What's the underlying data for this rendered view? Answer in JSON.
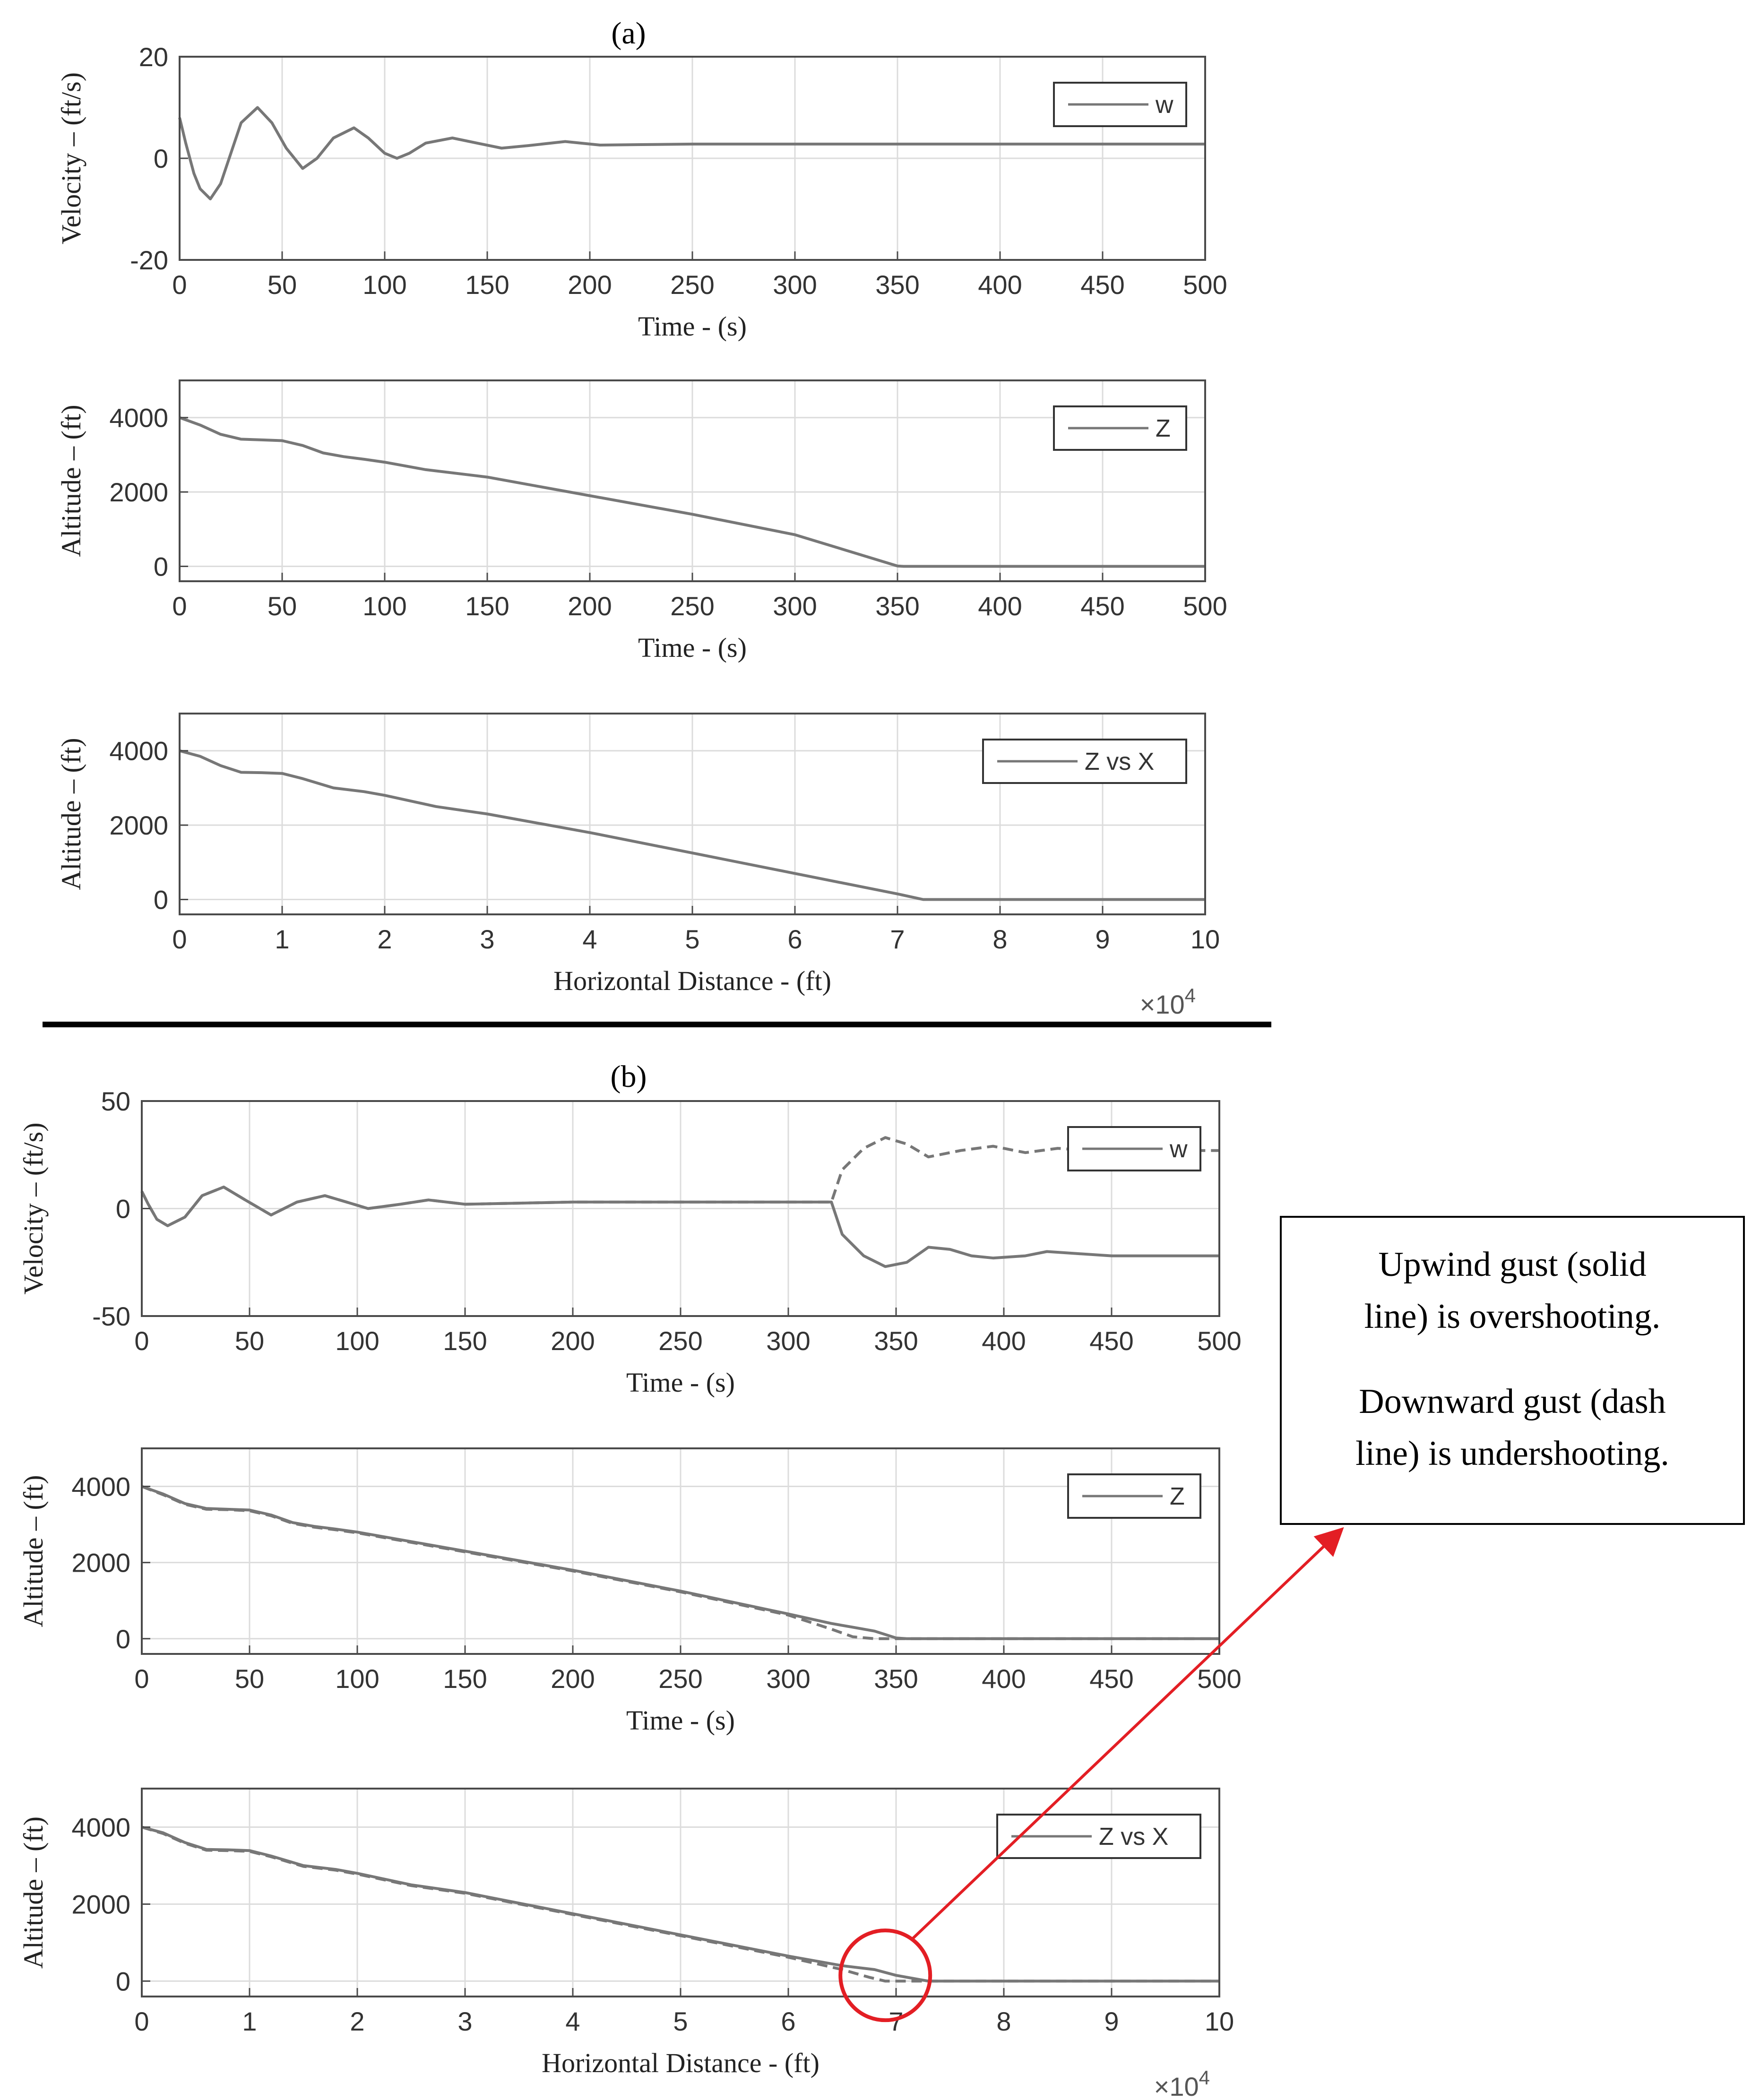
{
  "panel_labels": {
    "a": "(a)",
    "b": "(b)"
  },
  "annotation": {
    "lines": [
      "Upwind gust (solid",
      "line) is overshooting.",
      "Downward gust (dash",
      "line) is undershooting."
    ]
  },
  "colors": {
    "line": "#777777",
    "grid": "#dcdcdc",
    "arrow": "#e31e24",
    "circle": "#e31e24"
  },
  "chart_data": [
    {
      "id": "a1",
      "type": "line",
      "xlabel": "Time - (s)",
      "ylabel": "Velocity – (ft/s)",
      "xlim": [
        0,
        500
      ],
      "ylim": [
        -20,
        20
      ],
      "xticks": [
        0,
        50,
        100,
        150,
        200,
        250,
        300,
        350,
        400,
        450,
        500
      ],
      "yticks": [
        -20,
        0,
        20
      ],
      "legend": {
        "entries": [
          "w"
        ],
        "position": "top-right"
      },
      "grid": true,
      "series": [
        {
          "name": "w",
          "style": "solid",
          "x": [
            0,
            3,
            7,
            10,
            15,
            20,
            25,
            30,
            38,
            45,
            52,
            60,
            67,
            75,
            85,
            92,
            100,
            106,
            112,
            120,
            133,
            145,
            157,
            170,
            188,
            205,
            225,
            250,
            300,
            500
          ],
          "y": [
            8,
            3,
            -3,
            -6,
            -8,
            -5,
            1,
            7,
            10,
            7,
            2,
            -2,
            0,
            4,
            6,
            4,
            1,
            0,
            1,
            3,
            4,
            3,
            2,
            2.5,
            3.3,
            2.6,
            2.7,
            2.8,
            2.8,
            2.8
          ]
        }
      ]
    },
    {
      "id": "a2",
      "type": "line",
      "xlabel": "Time - (s)",
      "ylabel": "Altitude – (ft)",
      "xlim": [
        0,
        500
      ],
      "ylim": [
        -400,
        5000
      ],
      "xticks": [
        0,
        50,
        100,
        150,
        200,
        250,
        300,
        350,
        400,
        450,
        500
      ],
      "yticks": [
        0,
        2000,
        4000
      ],
      "legend": {
        "entries": [
          "Z"
        ],
        "position": "top-right"
      },
      "grid": true,
      "series": [
        {
          "name": "Z",
          "style": "solid",
          "x": [
            0,
            10,
            20,
            30,
            40,
            50,
            60,
            70,
            80,
            90,
            100,
            120,
            150,
            200,
            250,
            300,
            350,
            353,
            400,
            450,
            500
          ],
          "y": [
            4000,
            3800,
            3550,
            3420,
            3400,
            3380,
            3250,
            3050,
            2950,
            2880,
            2800,
            2600,
            2400,
            1900,
            1400,
            850,
            10,
            0,
            0,
            0,
            0
          ]
        }
      ]
    },
    {
      "id": "a3",
      "type": "line",
      "xlabel": "Horizontal Distance - (ft)",
      "ylabel": "Altitude – (ft)",
      "xlim": [
        0,
        10
      ],
      "ylim": [
        -400,
        5000
      ],
      "x_multiplier": "×10",
      "x_multiplier_exp": "4",
      "xticks": [
        0,
        1,
        2,
        3,
        4,
        5,
        6,
        7,
        8,
        9,
        10
      ],
      "yticks": [
        0,
        2000,
        4000
      ],
      "legend": {
        "entries": [
          "Z vs X"
        ],
        "position": "top-right"
      },
      "grid": true,
      "series": [
        {
          "name": "Z vs X",
          "style": "solid",
          "x": [
            0,
            0.2,
            0.4,
            0.6,
            0.8,
            1.0,
            1.2,
            1.5,
            1.8,
            2.0,
            2.5,
            3.0,
            4.0,
            5.0,
            6.0,
            7.0,
            7.25,
            8,
            9,
            10
          ],
          "y": [
            4000,
            3850,
            3600,
            3420,
            3410,
            3390,
            3250,
            3000,
            2900,
            2800,
            2500,
            2300,
            1800,
            1250,
            700,
            150,
            0,
            0,
            0,
            0
          ]
        }
      ]
    },
    {
      "id": "b1",
      "type": "line",
      "xlabel": "Time - (s)",
      "ylabel": "Velocity – (ft/s)",
      "xlim": [
        0,
        500
      ],
      "ylim": [
        -50,
        50
      ],
      "xticks": [
        0,
        50,
        100,
        150,
        200,
        250,
        300,
        350,
        400,
        450,
        500
      ],
      "yticks": [
        -50,
        0,
        50
      ],
      "legend": {
        "entries": [
          "w"
        ],
        "position": "top-right"
      },
      "grid": true,
      "series": [
        {
          "name": "upwind gust",
          "style": "solid",
          "x": [
            0,
            3,
            7,
            12,
            20,
            28,
            38,
            48,
            60,
            72,
            85,
            95,
            105,
            120,
            133,
            150,
            175,
            200,
            250,
            300,
            320,
            325,
            335,
            345,
            355,
            365,
            375,
            385,
            395,
            410,
            420,
            435,
            450,
            470,
            500
          ],
          "y": [
            8,
            2,
            -5,
            -8,
            -4,
            6,
            10,
            4,
            -3,
            3,
            6,
            3,
            0,
            2,
            4,
            2,
            2.5,
            3,
            3,
            3,
            3,
            -12,
            -22,
            -27,
            -25,
            -18,
            -19,
            -22,
            -23,
            -22,
            -20,
            -21,
            -22,
            -22,
            -22
          ]
        },
        {
          "name": "downward gust",
          "style": "dashed",
          "x": [
            0,
            3,
            7,
            12,
            20,
            28,
            38,
            48,
            60,
            72,
            85,
            95,
            105,
            120,
            133,
            150,
            175,
            200,
            250,
            300,
            320,
            325,
            335,
            345,
            355,
            365,
            380,
            395,
            410,
            425,
            440,
            460,
            480,
            500
          ],
          "y": [
            8,
            2,
            -5,
            -8,
            -4,
            6,
            10,
            4,
            -3,
            3,
            6,
            3,
            0,
            2,
            4,
            2,
            2.5,
            3,
            3,
            3,
            3,
            18,
            28,
            33,
            30,
            24,
            27,
            29,
            26,
            28,
            27,
            27,
            27,
            27
          ]
        }
      ]
    },
    {
      "id": "b2",
      "type": "line",
      "xlabel": "Time - (s)",
      "ylabel": "Altitude – (ft)",
      "xlim": [
        0,
        500
      ],
      "ylim": [
        -400,
        5000
      ],
      "xticks": [
        0,
        50,
        100,
        150,
        200,
        250,
        300,
        350,
        400,
        450,
        500
      ],
      "yticks": [
        0,
        2000,
        4000
      ],
      "legend": {
        "entries": [
          "Z"
        ],
        "position": "top-right"
      },
      "grid": true,
      "series": [
        {
          "name": "upwind gust",
          "style": "solid",
          "x": [
            0,
            10,
            20,
            30,
            40,
            50,
            60,
            70,
            80,
            90,
            100,
            120,
            150,
            200,
            250,
            300,
            320,
            330,
            340,
            350,
            355,
            400,
            450,
            500
          ],
          "y": [
            4000,
            3800,
            3550,
            3420,
            3400,
            3380,
            3250,
            3050,
            2950,
            2880,
            2800,
            2600,
            2300,
            1800,
            1250,
            650,
            400,
            300,
            200,
            20,
            0,
            0,
            0,
            0
          ]
        },
        {
          "name": "downward gust",
          "style": "dashed",
          "x": [
            0,
            10,
            20,
            30,
            40,
            50,
            60,
            70,
            80,
            90,
            100,
            120,
            150,
            200,
            250,
            300,
            320,
            330,
            340,
            345,
            400,
            450,
            500
          ],
          "y": [
            4000,
            3780,
            3530,
            3400,
            3390,
            3360,
            3230,
            3030,
            2930,
            2860,
            2780,
            2580,
            2280,
            1780,
            1230,
            620,
            250,
            50,
            0,
            0,
            0,
            0,
            0
          ]
        }
      ]
    },
    {
      "id": "b3",
      "type": "line",
      "xlabel": "Horizontal Distance - (ft)",
      "ylabel": "Altitude – (ft)",
      "xlim": [
        0,
        10
      ],
      "ylim": [
        -400,
        5000
      ],
      "x_multiplier": "×10",
      "x_multiplier_exp": "4",
      "xticks": [
        0,
        1,
        2,
        3,
        4,
        5,
        6,
        7,
        8,
        9,
        10
      ],
      "yticks": [
        0,
        2000,
        4000
      ],
      "legend": {
        "entries": [
          "Z vs X"
        ],
        "position": "top-right"
      },
      "grid": true,
      "highlight": {
        "x": 6.9,
        "y": 150
      },
      "series": [
        {
          "name": "upwind gust",
          "style": "solid",
          "x": [
            0,
            0.2,
            0.4,
            0.6,
            0.8,
            1.0,
            1.2,
            1.5,
            1.8,
            2.0,
            2.5,
            3.0,
            4.0,
            5.0,
            6.0,
            6.5,
            6.8,
            7.0,
            7.3,
            8,
            9,
            10
          ],
          "y": [
            4000,
            3850,
            3600,
            3420,
            3410,
            3390,
            3250,
            3000,
            2900,
            2800,
            2500,
            2300,
            1750,
            1200,
            650,
            400,
            300,
            150,
            0,
            0,
            0,
            0
          ]
        },
        {
          "name": "downward gust",
          "style": "dashed",
          "x": [
            0,
            0.2,
            0.4,
            0.6,
            0.8,
            1.0,
            1.2,
            1.5,
            1.8,
            2.0,
            2.5,
            3.0,
            4.0,
            5.0,
            6.0,
            6.5,
            6.75,
            6.9,
            8,
            9,
            10
          ],
          "y": [
            4000,
            3830,
            3580,
            3400,
            3390,
            3370,
            3230,
            2980,
            2880,
            2780,
            2480,
            2280,
            1730,
            1180,
            620,
            300,
            100,
            0,
            0,
            0,
            0
          ]
        }
      ]
    }
  ]
}
